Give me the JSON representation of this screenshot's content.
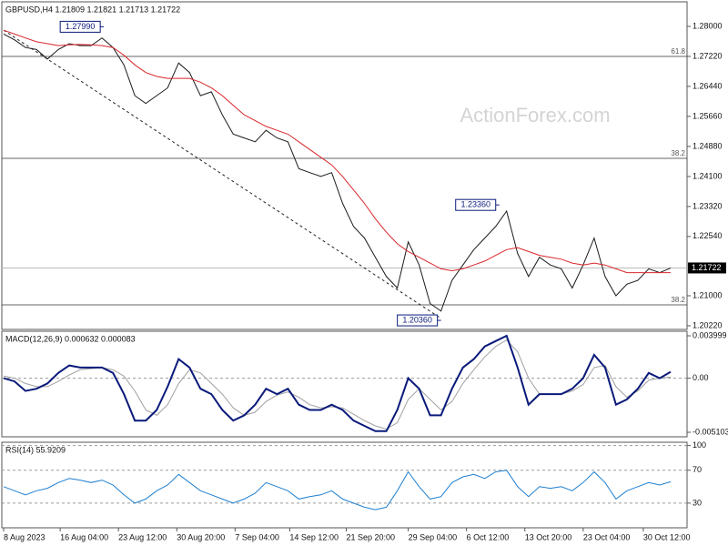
{
  "watermark": "ActionForex.com",
  "chart_data": [
    {
      "type": "line",
      "title": "GBPUSD,H4  1.21809 1.21821 1.21713 1.21722",
      "xlim": [
        -1,
        375
      ],
      "ylim": [
        1.20125,
        1.28638
      ],
      "x": [
        0,
        6,
        12,
        18,
        24,
        30,
        36,
        42,
        48,
        54,
        60,
        66,
        72,
        78,
        84,
        90,
        96,
        102,
        108,
        114,
        120,
        126,
        132,
        138,
        144,
        150,
        156,
        162,
        168,
        174,
        180,
        186,
        192,
        198,
        204,
        210,
        216,
        222,
        228,
        234,
        240,
        246,
        252,
        258,
        264,
        270,
        276,
        282,
        288,
        294,
        300,
        306,
        312,
        318,
        324,
        330,
        336,
        342,
        348,
        354,
        360,
        366
      ],
      "yticks": [
        {
          "value": 1.28,
          "label": "1.28000"
        },
        {
          "value": 1.2722,
          "label": "1.27220"
        },
        {
          "value": 1.2644,
          "label": "1.26440"
        },
        {
          "value": 1.2566,
          "label": "1.25660"
        },
        {
          "value": 1.2488,
          "label": "1.24880"
        },
        {
          "value": 1.241,
          "label": "1.24100"
        },
        {
          "value": 1.2332,
          "label": "1.23320"
        },
        {
          "value": 1.2254,
          "label": "1.22540"
        },
        {
          "value": 1.21,
          "label": "1.21000"
        },
        {
          "value": 1.2022,
          "label": "1.20220"
        }
      ],
      "series": [
        {
          "color": "#1a1a1a",
          "values": [
            1.278,
            1.2765,
            1.2745,
            1.274,
            1.2715,
            1.274,
            1.2755,
            1.275,
            1.275,
            1.277,
            1.2745,
            1.27,
            1.262,
            1.26,
            1.262,
            1.264,
            1.2705,
            1.268,
            1.262,
            1.263,
            1.257,
            1.252,
            1.251,
            1.25,
            1.253,
            1.251,
            1.25,
            1.243,
            1.242,
            1.241,
            1.242,
            1.234,
            1.228,
            1.225,
            1.22,
            1.215,
            1.212,
            1.224,
            1.218,
            1.208,
            1.206,
            1.214,
            1.218,
            1.222,
            1.225,
            1.228,
            1.232,
            1.221,
            1.215,
            1.22,
            1.218,
            1.217,
            1.212,
            1.218,
            1.225,
            1.215,
            1.21,
            1.213,
            1.214,
            1.217,
            1.216,
            1.2172
          ]
        },
        {
          "color": "#d9262b",
          "values": [
            1.279,
            1.278,
            1.277,
            1.276,
            1.2755,
            1.275,
            1.2752,
            1.2753,
            1.2752,
            1.275,
            1.2745,
            1.2725,
            1.27,
            1.268,
            1.267,
            1.2665,
            1.2665,
            1.2665,
            1.2655,
            1.264,
            1.262,
            1.2595,
            1.257,
            1.2555,
            1.254,
            1.253,
            1.252,
            1.25,
            1.248,
            1.246,
            1.244,
            1.241,
            1.2375,
            1.234,
            1.23,
            1.2265,
            1.2235,
            1.2215,
            1.22,
            1.2185,
            1.217,
            1.2165,
            1.217,
            1.218,
            1.219,
            1.2205,
            1.222,
            1.2225,
            1.2215,
            1.2205,
            1.22,
            1.2195,
            1.2185,
            1.218,
            1.2185,
            1.218,
            1.217,
            1.216,
            1.216,
            1.216,
            1.216,
            1.216
          ]
        }
      ],
      "levels": [
        {
          "value": 1.2722,
          "label": "61.8"
        },
        {
          "value": 1.24571,
          "label": "38.2"
        },
        {
          "value": 1.20764,
          "label": "38.2"
        }
      ],
      "last_price": 1.21722,
      "trendline": {
        "x": [
          0,
          240
        ],
        "values": [
          1.279,
          1.2041
        ]
      },
      "annotations": [
        {
          "x": 55,
          "value": 1.2799,
          "label": "1.27990"
        },
        {
          "x": 272,
          "value": 1.2336,
          "label": "1.23360"
        },
        {
          "x": 240,
          "value": 1.2036,
          "label": "1.20360"
        }
      ]
    },
    {
      "type": "line",
      "title": "MACD(12,26,9) 0.000632 0.000083",
      "xlim": [
        -1,
        375
      ],
      "ylim": [
        -0.00553,
        0.00443
      ],
      "zero_line": true,
      "x": [
        0,
        6,
        12,
        18,
        24,
        30,
        36,
        42,
        48,
        54,
        60,
        66,
        72,
        78,
        84,
        90,
        96,
        102,
        108,
        114,
        120,
        126,
        132,
        138,
        144,
        150,
        156,
        162,
        168,
        174,
        180,
        186,
        192,
        198,
        204,
        210,
        216,
        222,
        228,
        234,
        240,
        246,
        252,
        258,
        264,
        270,
        276,
        282,
        288,
        294,
        300,
        306,
        312,
        318,
        324,
        330,
        336,
        342,
        348,
        354,
        360,
        366
      ],
      "yticks": [
        0.003999,
        {
          "value": 0,
          "label": "0.00"
        },
        -0.005103
      ],
      "series": [
        {
          "color": "#a0a0a0",
          "values": [
            0.0002,
            0,
            -0.0005,
            -0.0008,
            -0.0008,
            -0.0003,
            0.0003,
            0.0008,
            0.0009,
            0.001,
            0.0008,
            0.0002,
            -0.0012,
            -0.003,
            -0.0035,
            -0.0025,
            -0.0005,
            0.0008,
            0.0005,
            -0.0005,
            -0.0015,
            -0.0028,
            -0.0035,
            -0.0032,
            -0.0022,
            -0.0016,
            -0.0013,
            -0.0018,
            -0.0025,
            -0.0028,
            -0.0027,
            -0.0028,
            -0.0034,
            -0.004,
            -0.0045,
            -0.0048,
            -0.0042,
            -0.002,
            -0.001,
            -0.002,
            -0.003,
            -0.0022,
            -0.0005,
            0.0008,
            0.002,
            0.003,
            0.0036,
            0.0025,
            0,
            -0.0015,
            -0.0015,
            -0.0015,
            -0.0012,
            -0.0006,
            0.001,
            0.0012,
            -0.0008,
            -0.0018,
            -0.0012,
            -0.0002,
            0,
            0.0001
          ]
        },
        {
          "color": "#0a1a7a",
          "values": [
            0,
            -0.0003,
            -0.0012,
            -0.001,
            -0.0005,
            0.0005,
            0.0012,
            0.001,
            0.001,
            0.001,
            0.0005,
            -0.0015,
            -0.004,
            -0.004,
            -0.003,
            -0.0008,
            0.0018,
            0.001,
            -0.001,
            -0.0015,
            -0.003,
            -0.004,
            -0.0035,
            -0.0025,
            -0.001,
            -0.0015,
            -0.001,
            -0.0025,
            -0.003,
            -0.003,
            -0.0025,
            -0.003,
            -0.004,
            -0.0045,
            -0.005,
            -0.005,
            -0.003,
            0,
            -0.001,
            -0.0035,
            -0.0035,
            -0.001,
            0.001,
            0.0018,
            0.003,
            0.0035,
            0.004,
            0.001,
            -0.0025,
            -0.0015,
            -0.0015,
            -0.0015,
            -0.001,
            0,
            0.0022,
            0.001,
            -0.0025,
            -0.002,
            -0.001,
            0.0005,
            0,
            0.0006
          ]
        }
      ]
    },
    {
      "type": "line",
      "title": "RSI(14) 55.9209",
      "xlim": [
        -1,
        375
      ],
      "ylim": [
        0,
        104
      ],
      "grid": "dashed",
      "x": [
        0,
        6,
        12,
        18,
        24,
        30,
        36,
        42,
        48,
        54,
        60,
        66,
        72,
        78,
        84,
        90,
        96,
        102,
        108,
        114,
        120,
        126,
        132,
        138,
        144,
        150,
        156,
        162,
        168,
        174,
        180,
        186,
        192,
        198,
        204,
        210,
        216,
        222,
        228,
        234,
        240,
        246,
        252,
        258,
        264,
        270,
        276,
        282,
        288,
        294,
        300,
        306,
        312,
        318,
        324,
        330,
        336,
        342,
        348,
        354,
        360,
        366
      ],
      "yticks": [
        100,
        70,
        30
      ],
      "xticks": [
        {
          "value": 0,
          "label": "8 Aug 2023"
        },
        {
          "value": 31,
          "label": "16 Aug 04:00"
        },
        {
          "value": 63,
          "label": "23 Aug 12:00"
        },
        {
          "value": 95,
          "label": "30 Aug 20:00"
        },
        {
          "value": 127,
          "label": "7 Sep 04:00"
        },
        {
          "value": 157,
          "label": "14 Sep 12:00"
        },
        {
          "value": 188,
          "label": "21 Sep 20:00"
        },
        {
          "value": 222,
          "label": "29 Sep 04:00"
        },
        {
          "value": 254,
          "label": "6 Oct 12:00"
        },
        {
          "value": 286,
          "label": "13 Oct 20:00"
        },
        {
          "value": 318,
          "label": "23 Oct 04:00"
        },
        {
          "value": 351,
          "label": "30 Oct 12:00"
        }
      ],
      "series": [
        {
          "color": "#1e7fd0",
          "values": [
            50,
            45,
            40,
            45,
            48,
            55,
            60,
            58,
            55,
            58,
            52,
            40,
            30,
            35,
            45,
            52,
            65,
            55,
            45,
            40,
            35,
            30,
            35,
            42,
            55,
            50,
            45,
            35,
            38,
            40,
            45,
            35,
            30,
            25,
            22,
            25,
            45,
            68,
            50,
            35,
            38,
            55,
            62,
            65,
            60,
            68,
            70,
            50,
            38,
            50,
            48,
            50,
            45,
            55,
            68,
            55,
            35,
            45,
            50,
            55,
            52,
            56
          ]
        }
      ]
    }
  ]
}
